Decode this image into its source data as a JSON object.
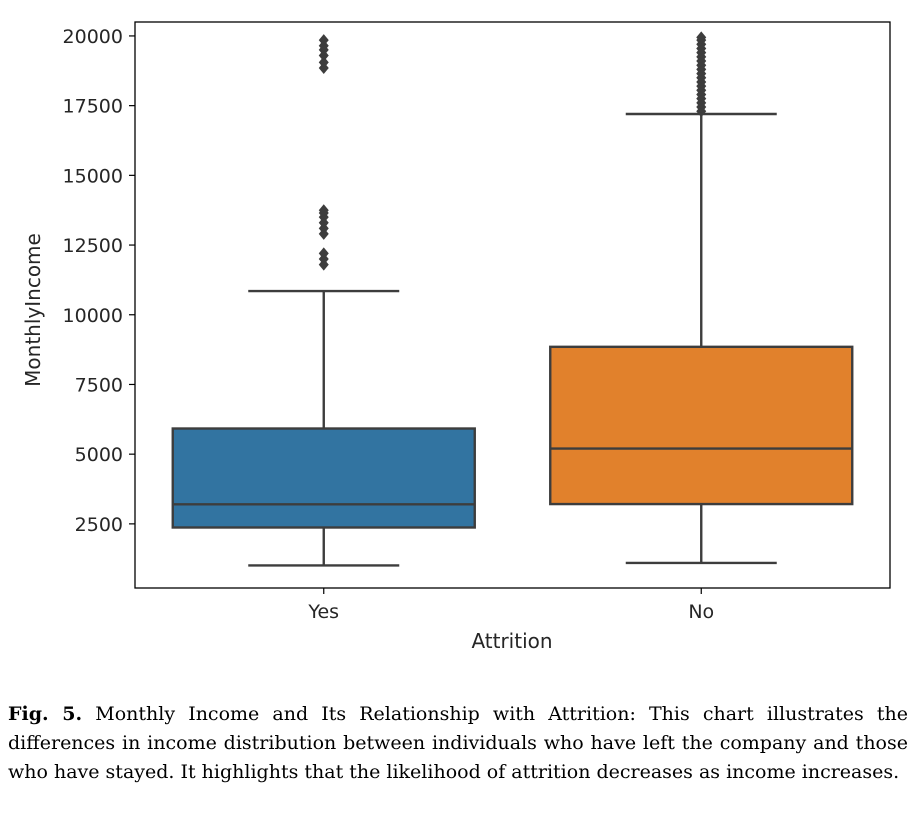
{
  "chart_data": {
    "type": "box",
    "xlabel": "Attrition",
    "ylabel": "MonthlyIncome",
    "ylim": [
      200,
      20500
    ],
    "yticks": [
      2500,
      5000,
      7500,
      10000,
      12500,
      15000,
      17500,
      20000
    ],
    "categories": [
      "Yes",
      "No"
    ],
    "boxes": [
      {
        "category": "Yes",
        "color": "#3274a1",
        "whisker_low": 1010,
        "q1": 2370,
        "median": 3200,
        "q3": 5920,
        "whisker_high": 10850,
        "outliers": [
          11800,
          12000,
          12200,
          12900,
          13100,
          13300,
          13500,
          13650,
          13750,
          18850,
          19050,
          19300,
          19500,
          19650,
          19850
        ]
      },
      {
        "category": "No",
        "color": "#e1812c",
        "whisker_low": 1100,
        "q1": 3210,
        "median": 5200,
        "q3": 8850,
        "whisker_high": 17200,
        "outliers": [
          17300,
          17450,
          17600,
          17750,
          17900,
          18050,
          18200,
          18350,
          18500,
          18650,
          18800,
          18950,
          19100,
          19250,
          19400,
          19550,
          19700,
          19850,
          19950
        ]
      }
    ]
  },
  "caption": {
    "label": "Fig. 5.",
    "text": "Monthly Income and Its Relationship with Attrition: This chart illustrates the differences in income distribution between individuals who have left the company and those who have stayed. It highlights that the likelihood of attrition decreases as income increases."
  }
}
